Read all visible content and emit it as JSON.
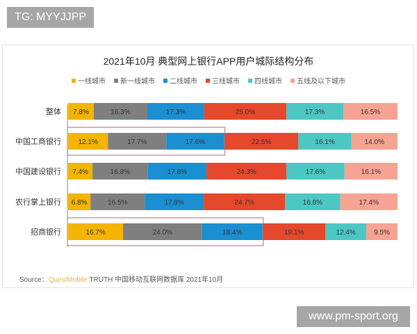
{
  "overlay": {
    "tag": "TG: MYYJJPP",
    "watermark": "www.pm-sport.org"
  },
  "chart_data": {
    "type": "bar",
    "stacked": true,
    "orientation": "horizontal",
    "title": "2021年10月 典型网上银行APP用户城际结构分布",
    "legend_position": "top",
    "categories": [
      "整体",
      "中国工商银行",
      "中国建设银行",
      "农行掌上银行",
      "招商银行"
    ],
    "series": [
      {
        "name": "一线城市",
        "color": "#f5b400",
        "values": [
          7.8,
          12.1,
          7.4,
          6.8,
          16.7
        ]
      },
      {
        "name": "新一线城市",
        "color": "#7f7f7f",
        "values": [
          16.3,
          17.7,
          16.8,
          16.5,
          24.0
        ]
      },
      {
        "name": "二线城市",
        "color": "#1a8fd2",
        "values": [
          17.3,
          17.6,
          17.8,
          17.9,
          18.4
        ]
      },
      {
        "name": "三线城市",
        "color": "#e5482a",
        "values": [
          25.0,
          22.5,
          24.3,
          24.7,
          19.1
        ]
      },
      {
        "name": "四线城市",
        "color": "#4cc7c4",
        "values": [
          17.3,
          16.1,
          17.6,
          16.8,
          12.4
        ]
      },
      {
        "name": "五线及以下城市",
        "color": "#f7a393",
        "values": [
          16.5,
          14.0,
          16.1,
          17.4,
          9.5
        ]
      }
    ],
    "highlighted_rows": [
      "中国工商银行",
      "招商银行"
    ],
    "unit": "%",
    "grid": false
  },
  "source": {
    "prefix": "Source：",
    "brand": "QuestMobile",
    "text": "TRUTH 中国移动互联网数据库 2021年10月"
  }
}
